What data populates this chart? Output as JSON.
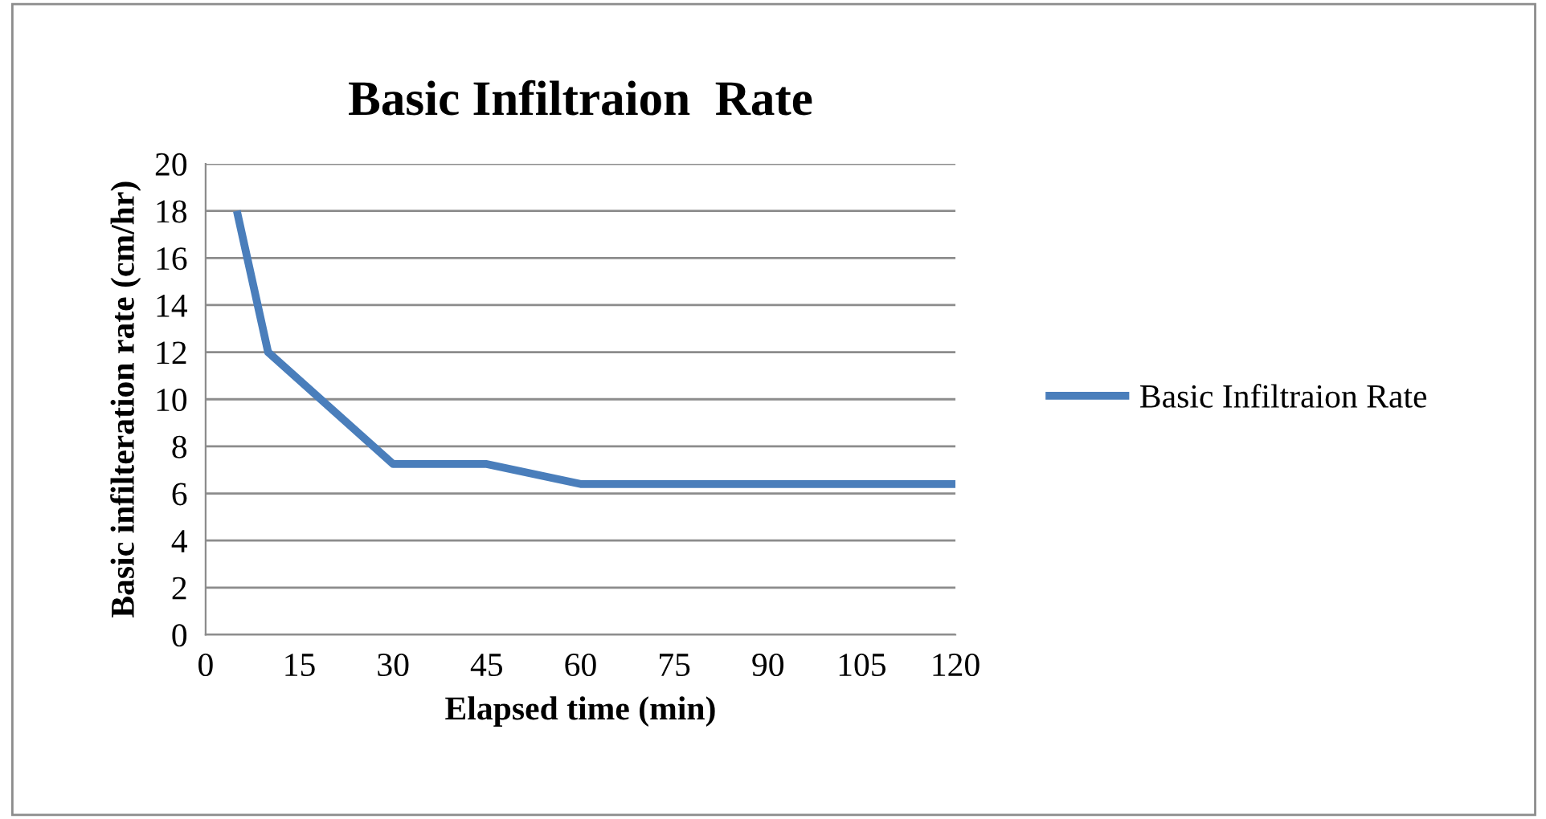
{
  "chart_data": {
    "type": "line",
    "title": "Basic Infiltraion  Rate",
    "xlabel": "Elapsed time (min)",
    "ylabel": "Basic infilteration rate (cm/hr)",
    "x": [
      5,
      10,
      30,
      45,
      60,
      75,
      90,
      105,
      120
    ],
    "series": [
      {
        "name": "Basic Infiltraion Rate",
        "color": "#4a7ebb",
        "values": [
          18,
          12,
          7.25,
          7.25,
          6.4,
          6.4,
          6.4,
          6.4,
          6.4
        ]
      }
    ],
    "xlim": [
      0,
      120
    ],
    "xticks": [
      0,
      15,
      30,
      45,
      60,
      75,
      90,
      105,
      120
    ],
    "ylim": [
      0,
      20
    ],
    "yticks": [
      0,
      2,
      4,
      6,
      8,
      10,
      12,
      14,
      16,
      18,
      20
    ],
    "grid": "y",
    "legend": "right",
    "marker": "none",
    "line_style": "solid"
  }
}
